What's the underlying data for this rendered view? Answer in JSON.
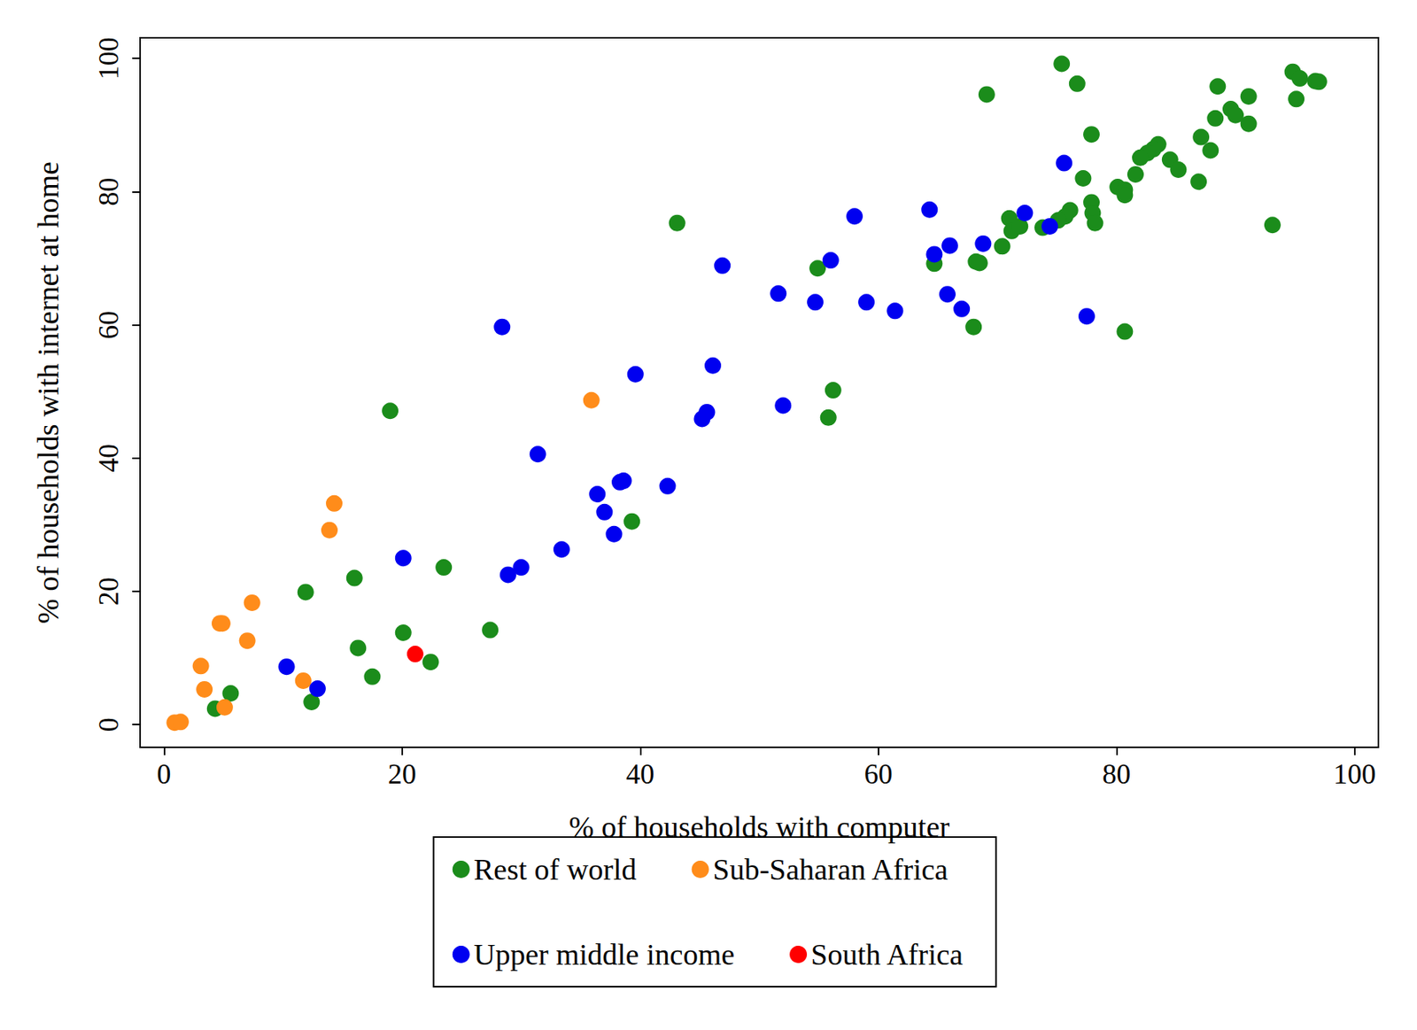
{
  "chart_data": {
    "type": "scatter",
    "xlabel": "% of households with computer",
    "ylabel": "% of households with internet at home",
    "xlim": [
      -2,
      102
    ],
    "ylim": [
      -3.4,
      103.1
    ],
    "xticks": [
      0,
      20,
      40,
      60,
      80,
      100
    ],
    "yticks": [
      0,
      20,
      40,
      60,
      80,
      100
    ],
    "grid": false,
    "legend": "bottom",
    "marker": "circle",
    "series": [
      {
        "name": "Rest of world",
        "color": "#1b8c1b",
        "x": [
          75.4,
          69.1,
          76.7,
          94.8,
          95.4,
          96.7,
          97.0,
          88.5,
          95.1,
          91.1,
          88.3,
          89.6,
          90.0,
          91.1,
          87.1,
          77.9,
          87.9,
          83.5,
          83.1,
          82.6,
          82.0,
          84.5,
          85.2,
          81.6,
          86.9,
          77.2,
          80.1,
          80.7,
          80.7,
          77.9,
          78.0,
          78.2,
          76.1,
          75.7,
          75.1,
          73.8,
          71.0,
          71.2,
          71.9,
          70.4,
          93.1,
          43.1,
          64.7,
          68.5,
          68.2,
          54.9,
          68.0,
          80.7,
          56.2,
          55.8,
          19.0,
          39.3,
          23.5,
          16.0,
          11.9,
          27.4,
          20.1,
          16.3,
          22.4,
          17.5,
          5.6,
          4.3,
          12.4
        ],
        "y": [
          99.2,
          94.6,
          96.2,
          98.0,
          97.0,
          96.6,
          96.5,
          95.8,
          93.9,
          94.3,
          91.0,
          92.4,
          91.5,
          90.2,
          88.2,
          88.6,
          86.2,
          87.1,
          86.4,
          85.8,
          85.1,
          84.8,
          83.3,
          82.6,
          81.5,
          82.0,
          80.7,
          80.3,
          79.5,
          78.4,
          76.8,
          75.3,
          77.2,
          76.3,
          75.7,
          74.6,
          76.0,
          74.1,
          74.8,
          71.8,
          75.0,
          75.3,
          69.2,
          69.3,
          69.5,
          68.5,
          59.7,
          59.0,
          50.2,
          46.1,
          47.1,
          30.5,
          23.6,
          22.0,
          19.9,
          14.2,
          13.8,
          11.5,
          9.4,
          7.2,
          4.7,
          2.4,
          3.4
        ]
      },
      {
        "name": "Sub-Saharan Africa",
        "color": "#ff8c1a",
        "x": [
          35.9,
          14.3,
          13.9,
          7.4,
          4.7,
          4.9,
          7.0,
          3.1,
          3.4,
          11.7,
          5.1,
          0.9,
          1.4
        ],
        "y": [
          48.7,
          33.2,
          29.2,
          18.3,
          15.2,
          15.2,
          12.6,
          8.8,
          5.3,
          6.6,
          2.6,
          0.3,
          0.4
        ]
      },
      {
        "name": "Upper middle income",
        "color": "#0000f0",
        "x": [
          75.6,
          72.3,
          74.4,
          58.0,
          64.3,
          68.8,
          66.0,
          64.7,
          56.0,
          46.9,
          51.6,
          54.7,
          59.0,
          65.8,
          67.0,
          61.4,
          77.5,
          28.4,
          39.6,
          46.1,
          45.2,
          45.6,
          52.0,
          31.4,
          38.6,
          38.3,
          42.3,
          36.4,
          37.0,
          37.8,
          33.4,
          20.1,
          30.0,
          28.9,
          10.3,
          12.9
        ],
        "y": [
          84.3,
          76.8,
          74.8,
          76.3,
          77.3,
          72.2,
          71.9,
          70.6,
          69.7,
          68.9,
          64.7,
          63.4,
          63.4,
          64.6,
          62.4,
          62.1,
          61.3,
          59.7,
          52.6,
          53.9,
          45.9,
          46.9,
          47.9,
          40.6,
          36.6,
          36.4,
          35.8,
          34.6,
          31.9,
          28.6,
          26.3,
          25.0,
          23.6,
          22.5,
          8.7,
          5.4
        ]
      },
      {
        "name": "South Africa",
        "color": "#ff0000",
        "x": [
          21.1
        ],
        "y": [
          10.6
        ]
      }
    ]
  }
}
